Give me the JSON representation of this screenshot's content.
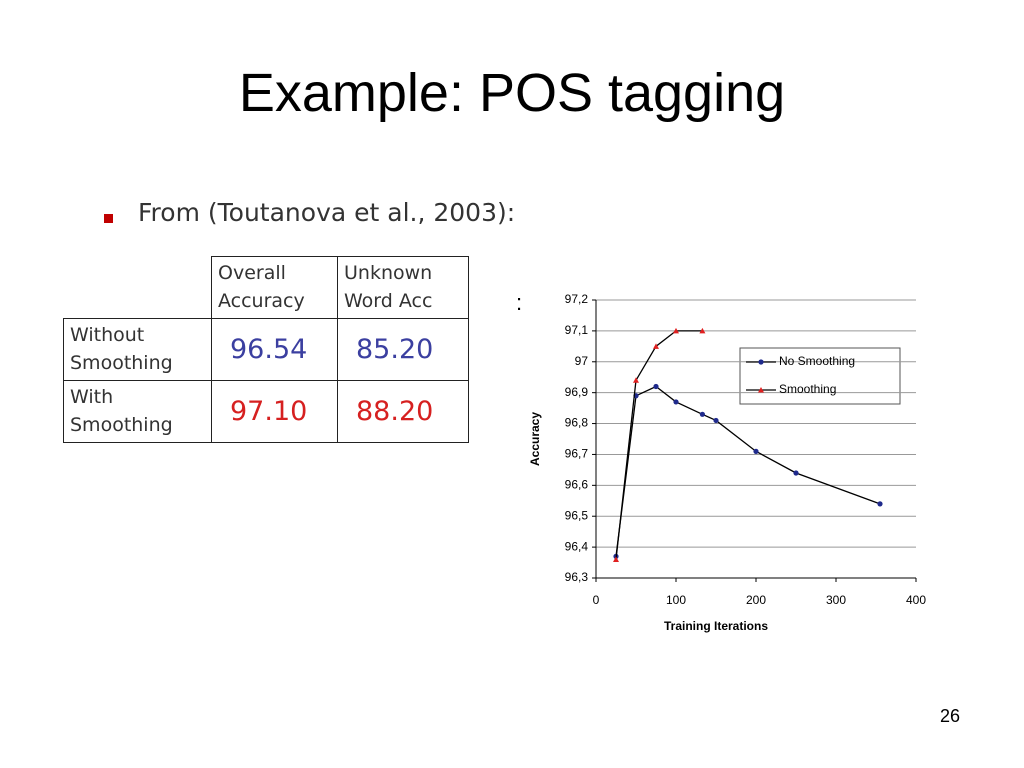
{
  "title": "Example: POS tagging",
  "bullet": "From (Toutanova et al., 2003):",
  "table": {
    "header": [
      "Overall Accuracy",
      "Unknown Word Acc"
    ],
    "rows": [
      [
        "Without Smoothing",
        "96.54",
        "85.20"
      ],
      [
        "With Smoothing",
        "97.10",
        "88.20"
      ]
    ]
  },
  "colon": ":",
  "chart_data": {
    "type": "line",
    "xlabel": "Training Iterations",
    "ylabel": "Accuracy",
    "xlim": [
      0,
      400
    ],
    "xticks": [
      0,
      100,
      200,
      300,
      400
    ],
    "ylim": [
      96.3,
      97.2
    ],
    "yticks": [
      {
        "value": 96.3,
        "label": "96,3"
      },
      {
        "value": 96.4,
        "label": "96,4"
      },
      {
        "value": 96.5,
        "label": "96,5"
      },
      {
        "value": 96.6,
        "label": "96,6"
      },
      {
        "value": 96.7,
        "label": "96,7"
      },
      {
        "value": 96.8,
        "label": "96,8"
      },
      {
        "value": 96.9,
        "label": "96,9"
      },
      97,
      {
        "value": 97.1,
        "label": "97,1"
      },
      {
        "value": 97.2,
        "label": "97,2"
      }
    ],
    "grid": true,
    "legend": "upper right",
    "line_color": "#000000",
    "series": [
      {
        "name": "No Smoothing",
        "color": "#1f2a8c",
        "marker": "circle",
        "x": [
          25,
          50,
          75,
          100,
          133,
          150,
          200,
          250,
          355
        ],
        "values": [
          96.37,
          96.89,
          96.92,
          96.87,
          96.83,
          96.81,
          96.71,
          96.64,
          96.54
        ]
      },
      {
        "name": "Smoothing",
        "color": "#e02020",
        "marker": "triangle",
        "x": [
          25,
          50,
          75,
          100,
          133
        ],
        "values": [
          96.36,
          96.94,
          97.05,
          97.1,
          97.1
        ]
      }
    ]
  },
  "page_number": "26"
}
